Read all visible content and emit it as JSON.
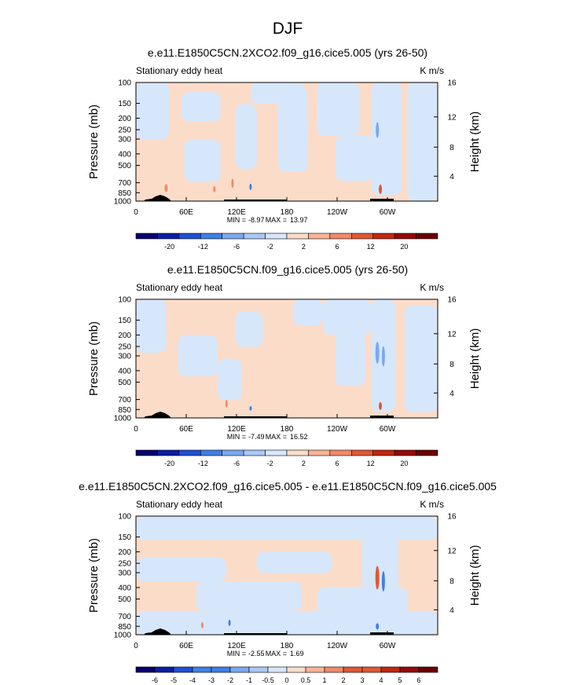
{
  "figure_title": "DJF",
  "colors": {
    "neg_light": "#d6e7fb",
    "pos_light": "#fbdcc9",
    "terrain": "#000000",
    "frame": "#000000",
    "contour_palette": [
      "#08006e",
      "#0a1ea5",
      "#1f4fd4",
      "#3f7fe6",
      "#7aa8f0",
      "#a9c8f7",
      "#d6e7fb",
      "#fbdcc9",
      "#f7b397",
      "#f08a6a",
      "#e15734",
      "#c2260f",
      "#95080a",
      "#6a0000"
    ]
  },
  "chart_data": [
    {
      "type": "heatmap",
      "title": "e.e11.E1850C5CN.2XCO2.f09_g16.cice5.005 (yrs 26-50)",
      "subtitle": "Stationary eddy heat",
      "units": "K m/s",
      "ylabel": "Pressure (mb)",
      "ylabel_right": "Height (km)",
      "x_ticks": [
        "0",
        "60E",
        "120E",
        "180",
        "120W",
        "60W"
      ],
      "y_ticks": [
        "100",
        "150",
        "200",
        "250",
        "300",
        "400",
        "500",
        "700",
        "850",
        "1000"
      ],
      "y_right_ticks": [
        "4",
        "8",
        "12",
        "16"
      ],
      "stats": {
        "min_label": "MIN =",
        "min": "-8.97",
        "max_label": "MAX =",
        "max": "13.97"
      },
      "colorbar_labels": [
        "-20",
        "-12",
        "-6",
        "-2",
        "2",
        "6",
        "12",
        "20"
      ],
      "colorbar_levels": 14
    },
    {
      "type": "heatmap",
      "title": "e.e11.E1850C5CN.f09_g16.cice5.005 (yrs 26-50)",
      "subtitle": "Stationary eddy heat",
      "units": "K m/s",
      "ylabel": "Pressure (mb)",
      "ylabel_right": "Height (km)",
      "x_ticks": [
        "0",
        "60E",
        "120E",
        "180",
        "120W",
        "60W"
      ],
      "y_ticks": [
        "100",
        "150",
        "200",
        "250",
        "300",
        "400",
        "500",
        "700",
        "850",
        "1000"
      ],
      "y_right_ticks": [
        "4",
        "8",
        "12",
        "16"
      ],
      "stats": {
        "min_label": "MIN =",
        "min": "-7.49",
        "max_label": "MAX =",
        "max": "16.52"
      },
      "colorbar_labels": [
        "-20",
        "-12",
        "-6",
        "-2",
        "2",
        "6",
        "12",
        "20"
      ],
      "colorbar_levels": 14
    },
    {
      "type": "heatmap",
      "title": "e.e11.E1850C5CN.2XCO2.f09_g16.cice5.005 - e.e11.E1850C5CN.f09_g16.cice5.005",
      "subtitle": "Stationary eddy heat",
      "units": "K m/s",
      "ylabel": "Pressure (mb)",
      "ylabel_right": "Height (km)",
      "x_ticks": [
        "0",
        "60E",
        "120E",
        "180",
        "120W",
        "60W"
      ],
      "y_ticks": [
        "100",
        "150",
        "200",
        "250",
        "300",
        "400",
        "500",
        "700",
        "850",
        "1000"
      ],
      "y_right_ticks": [
        "4",
        "8",
        "12",
        "16"
      ],
      "stats": {
        "min_label": "MIN =",
        "min": "-2.55",
        "max_label": "MAX =",
        "max": "1.69"
      },
      "colorbar_labels": [
        "-6",
        "-5",
        "-4",
        "-3",
        "-2",
        "-1",
        "-0.5",
        "0",
        "0.5",
        "1",
        "2",
        "3",
        "4",
        "5",
        "6"
      ],
      "colorbar_levels": 16
    }
  ]
}
